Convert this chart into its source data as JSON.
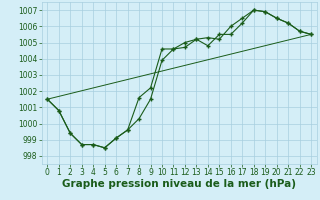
{
  "bg_color": "#d4eef7",
  "grid_color": "#a8cfe0",
  "line_color": "#1a5c1a",
  "marker_color": "#1a5c1a",
  "ylim": [
    997.5,
    1007.5
  ],
  "xlim": [
    -0.5,
    23.5
  ],
  "yticks": [
    998,
    999,
    1000,
    1001,
    1002,
    1003,
    1004,
    1005,
    1006,
    1007
  ],
  "xticks": [
    0,
    1,
    2,
    3,
    4,
    5,
    6,
    7,
    8,
    9,
    10,
    11,
    12,
    13,
    14,
    15,
    16,
    17,
    18,
    19,
    20,
    21,
    22,
    23
  ],
  "series1_x": [
    0,
    1,
    2,
    3,
    4,
    5,
    6,
    7,
    8,
    9,
    10,
    11,
    12,
    13,
    14,
    15,
    16,
    17,
    18,
    19,
    20,
    21,
    22,
    23
  ],
  "series1_y": [
    1001.5,
    1000.8,
    999.4,
    998.7,
    998.7,
    998.5,
    999.1,
    999.6,
    1000.3,
    1001.5,
    1003.9,
    1004.6,
    1004.7,
    1005.2,
    1005.3,
    1005.2,
    1006.0,
    1006.5,
    1007.0,
    1006.9,
    1006.5,
    1006.2,
    1005.7,
    1005.5
  ],
  "series2_x": [
    0,
    1,
    2,
    3,
    4,
    5,
    6,
    7,
    8,
    9,
    10,
    11,
    12,
    13,
    14,
    15,
    16,
    17,
    18,
    19,
    20,
    21,
    22,
    23
  ],
  "series2_y": [
    1001.5,
    1000.8,
    999.4,
    998.7,
    998.7,
    998.5,
    999.1,
    999.6,
    1001.6,
    1002.2,
    1004.6,
    1004.6,
    1005.0,
    1005.2,
    1004.8,
    1005.5,
    1005.5,
    1006.2,
    1007.0,
    1006.9,
    1006.5,
    1006.2,
    1005.7,
    1005.5
  ],
  "series3_x": [
    0,
    23
  ],
  "series3_y": [
    1001.5,
    1005.5
  ],
  "xlabel": "Graphe pression niveau de la mer (hPa)",
  "xlabel_color": "#1a5c1a",
  "tick_fontsize": 5.5,
  "xlabel_fontsize": 7.5
}
